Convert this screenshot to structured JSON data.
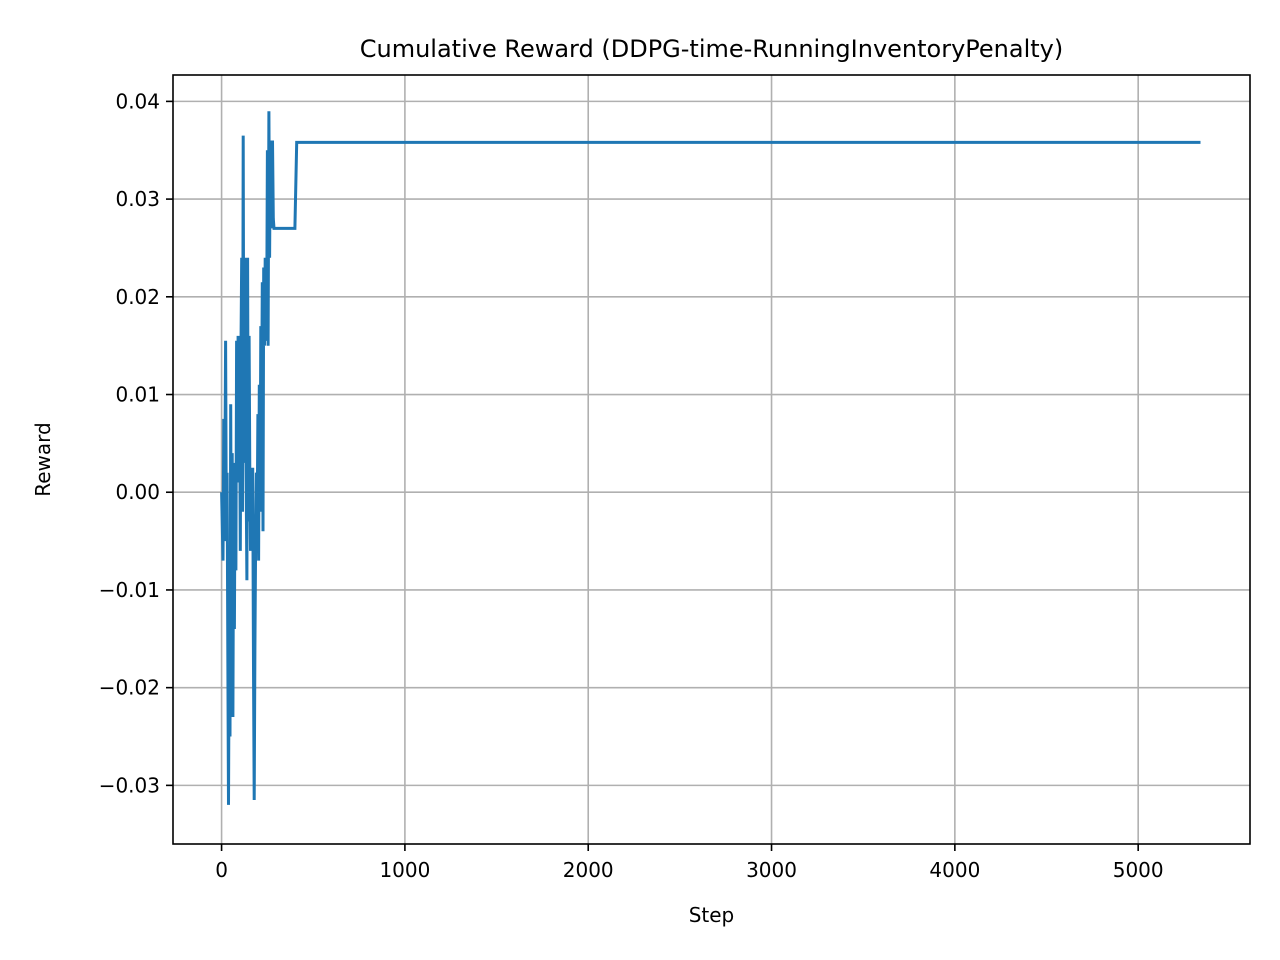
{
  "chart_data": {
    "type": "line",
    "title": "Cumulative Reward (DDPG-time-RunningInventoryPenalty)",
    "xlabel": "Step",
    "ylabel": "Reward",
    "xlim": [
      -265,
      5610
    ],
    "ylim": [
      -0.036,
      0.0427
    ],
    "grid": true,
    "xticks": [
      0,
      1000,
      2000,
      3000,
      4000,
      5000
    ],
    "xtick_labels": [
      "0",
      "1000",
      "2000",
      "3000",
      "4000",
      "5000"
    ],
    "yticks": [
      -0.03,
      -0.02,
      -0.01,
      0.0,
      0.01,
      0.02,
      0.03,
      0.04
    ],
    "ytick_labels": [
      "−0.03",
      "−0.02",
      "−0.01",
      "0.00",
      "0.01",
      "0.02",
      "0.03",
      "0.04"
    ],
    "series": [
      {
        "name": "Cumulative Reward",
        "color": "#1f77b4",
        "x": [
          0,
          8,
          12,
          16,
          22,
          26,
          30,
          34,
          38,
          42,
          46,
          50,
          54,
          58,
          62,
          66,
          70,
          74,
          78,
          82,
          86,
          90,
          94,
          98,
          102,
          106,
          110,
          114,
          118,
          122,
          126,
          130,
          134,
          138,
          142,
          146,
          150,
          154,
          158,
          162,
          166,
          170,
          174,
          178,
          182,
          186,
          190,
          194,
          198,
          202,
          206,
          210,
          214,
          218,
          222,
          226,
          230,
          234,
          238,
          242,
          246,
          250,
          254,
          258,
          262,
          266,
          270,
          274,
          278,
          282,
          286,
          290,
          294,
          298,
          302,
          306,
          310,
          314,
          318,
          322,
          326,
          330,
          334,
          338,
          342,
          346,
          350,
          354,
          360,
          380,
          400,
          410,
          5340
        ],
        "y": [
          0.0,
          -0.007,
          0.0075,
          -0.005,
          0.0155,
          -0.003,
          0.002,
          -0.016,
          -0.032,
          -0.012,
          -0.025,
          0.009,
          -0.017,
          0.004,
          -0.023,
          0.002,
          -0.014,
          0.003,
          -0.008,
          0.0155,
          0.001,
          0.016,
          0.005,
          0.012,
          -0.006,
          0.015,
          0.024,
          -0.002,
          0.0365,
          0.003,
          0.024,
          0.012,
          0.002,
          -0.009,
          0.024,
          -0.003,
          0.016,
          0.002,
          -0.006,
          0.002,
          -0.002,
          0.0025,
          -0.018,
          -0.0315,
          -0.016,
          -0.004,
          0.002,
          -0.004,
          0.008,
          -0.007,
          0.011,
          -0.002,
          0.017,
          0.006,
          0.0215,
          -0.004,
          0.023,
          0.015,
          0.024,
          0.0155,
          0.018,
          0.035,
          0.015,
          0.039,
          0.024,
          0.036,
          0.027,
          0.033,
          0.036,
          0.028,
          0.027,
          0.027,
          0.027,
          0.027,
          0.027,
          0.027,
          0.027,
          0.027,
          0.027,
          0.027,
          0.027,
          0.027,
          0.027,
          0.027,
          0.027,
          0.027,
          0.027,
          0.027,
          0.027,
          0.027,
          0.027,
          0.0358,
          0.0358
        ]
      }
    ]
  }
}
